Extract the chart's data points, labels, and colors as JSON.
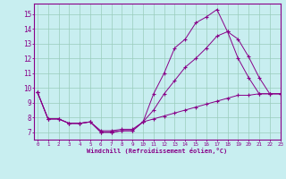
{
  "line1_x": [
    0,
    1,
    2,
    3,
    4,
    5,
    6,
    7,
    8,
    9,
    10,
    11,
    12,
    13,
    14,
    15,
    16,
    17,
    18,
    19,
    20,
    21,
    22,
    23
  ],
  "line1_y": [
    9.7,
    7.9,
    7.9,
    7.6,
    7.6,
    7.7,
    7.0,
    7.0,
    7.1,
    7.1,
    7.7,
    9.6,
    11.0,
    12.7,
    13.3,
    14.4,
    14.8,
    15.3,
    13.8,
    13.3,
    12.1,
    10.7,
    9.6,
    9.6
  ],
  "line2_x": [
    0,
    1,
    2,
    3,
    4,
    5,
    6,
    7,
    8,
    9,
    10,
    11,
    12,
    13,
    14,
    15,
    16,
    17,
    18,
    19,
    20,
    21,
    22,
    23
  ],
  "line2_y": [
    9.7,
    7.9,
    7.9,
    7.6,
    7.6,
    7.7,
    7.0,
    7.0,
    7.1,
    7.1,
    7.7,
    8.5,
    9.6,
    10.5,
    11.4,
    12.0,
    12.7,
    13.5,
    13.8,
    12.0,
    10.7,
    9.6,
    9.6,
    9.6
  ],
  "line3_x": [
    0,
    1,
    2,
    3,
    4,
    5,
    6,
    7,
    8,
    9,
    10,
    11,
    12,
    13,
    14,
    15,
    16,
    17,
    18,
    19,
    20,
    21,
    22,
    23
  ],
  "line3_y": [
    9.7,
    7.9,
    7.9,
    7.6,
    7.6,
    7.7,
    7.1,
    7.1,
    7.2,
    7.2,
    7.7,
    7.9,
    8.1,
    8.3,
    8.5,
    8.7,
    8.9,
    9.1,
    9.3,
    9.5,
    9.5,
    9.6,
    9.6,
    9.6
  ],
  "line_color": "#880088",
  "bg_color": "#c8eef0",
  "grid_color": "#99ccbb",
  "xlabel": "Windchill (Refroidissement éolien,°C)",
  "ylim": [
    6.5,
    15.7
  ],
  "xlim": [
    -0.3,
    23
  ],
  "yticks": [
    7,
    8,
    9,
    10,
    11,
    12,
    13,
    14,
    15
  ],
  "xticks": [
    0,
    1,
    2,
    3,
    4,
    5,
    6,
    7,
    8,
    9,
    10,
    11,
    12,
    13,
    14,
    15,
    16,
    17,
    18,
    19,
    20,
    21,
    22,
    23
  ]
}
